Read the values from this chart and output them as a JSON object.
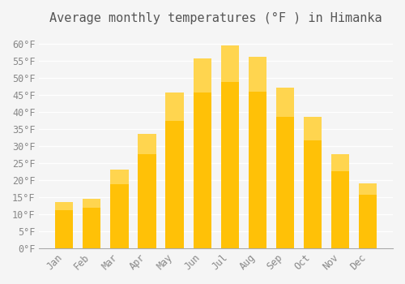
{
  "title": "Average monthly temperatures (°F ) in Himanka",
  "months": [
    "Jan",
    "Feb",
    "Mar",
    "Apr",
    "May",
    "Jun",
    "Jul",
    "Aug",
    "Sep",
    "Oct",
    "Nov",
    "Dec"
  ],
  "values": [
    13.5,
    14.5,
    23.0,
    33.5,
    45.5,
    55.5,
    59.5,
    56.0,
    47.0,
    38.5,
    27.5,
    19.0
  ],
  "bar_color_bottom": "#FFC107",
  "bar_color_top": "#FFD54F",
  "ylim": [
    0,
    63
  ],
  "yticks": [
    0,
    5,
    10,
    15,
    20,
    25,
    30,
    35,
    40,
    45,
    50,
    55,
    60
  ],
  "ytick_labels": [
    "0°F",
    "5°F",
    "10°F",
    "15°F",
    "20°F",
    "25°F",
    "30°F",
    "35°F",
    "40°F",
    "45°F",
    "50°F",
    "55°F",
    "60°F"
  ],
  "background_color": "#f5f5f5",
  "grid_color": "#ffffff",
  "title_fontsize": 11,
  "tick_fontsize": 8.5
}
